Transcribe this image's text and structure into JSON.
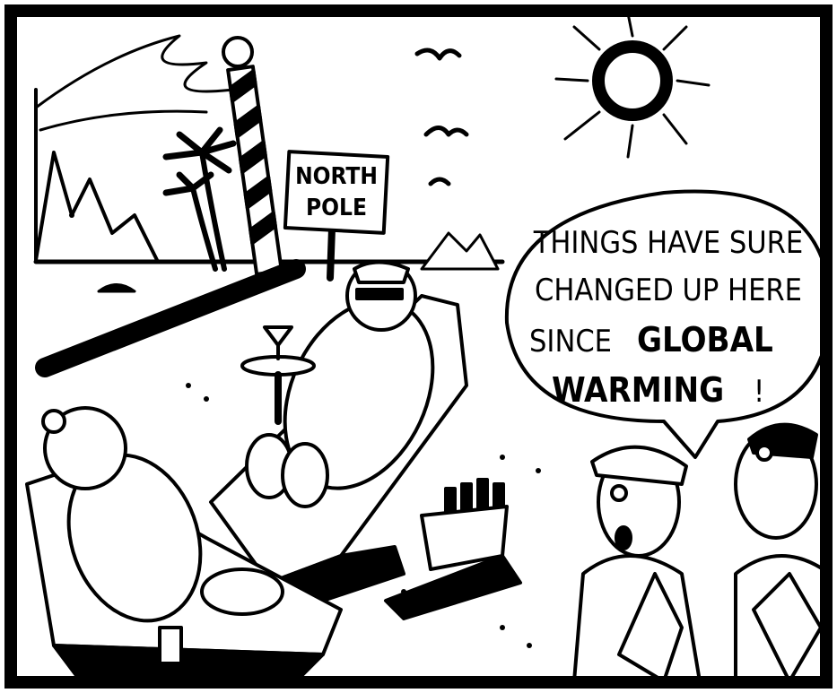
{
  "sign": {
    "lines": [
      "NORTH",
      "POLE"
    ]
  },
  "speech_bubble": {
    "lines": [
      "THINGS HAVE SURE",
      "CHANGED UP HERE",
      "SINCE",
      "GLOBAL",
      "WARMING",
      "!"
    ]
  }
}
